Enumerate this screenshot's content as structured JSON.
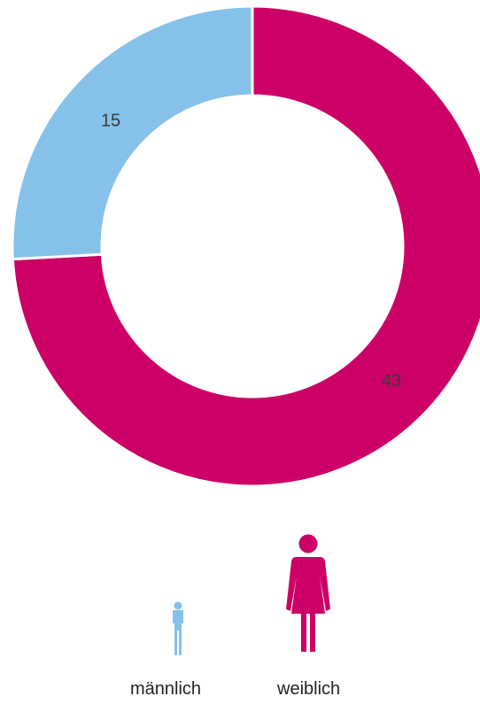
{
  "chart_data": {
    "type": "pie",
    "donut": true,
    "categories": [
      "männlich",
      "weiblich"
    ],
    "values": [
      15,
      43
    ],
    "colors": [
      "#85C1E9",
      "#CC0066"
    ],
    "data_labels": [
      "15",
      "43"
    ],
    "legend": {
      "placement": "bottom",
      "entries": [
        {
          "label": "männlich",
          "icon": "male-person-icon",
          "color": "#85C1E9"
        },
        {
          "label": "weiblich",
          "icon": "female-person-icon",
          "color": "#CC0066"
        }
      ]
    }
  }
}
